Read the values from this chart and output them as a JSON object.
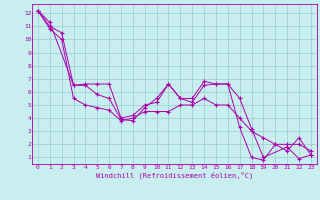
{
  "xlabel": "Windchill (Refroidissement éolien,°C)",
  "background_color": "#c8eef0",
  "line_color": "#aa00aa",
  "grid_color": "#99cccc",
  "xlim": [
    -0.5,
    23.5
  ],
  "ylim": [
    0.5,
    12.7
  ],
  "xticks": [
    0,
    1,
    2,
    3,
    4,
    5,
    6,
    7,
    8,
    9,
    10,
    11,
    12,
    13,
    14,
    15,
    16,
    17,
    18,
    19,
    20,
    21,
    22,
    23
  ],
  "yticks": [
    1,
    2,
    3,
    4,
    5,
    6,
    7,
    8,
    9,
    10,
    11,
    12
  ],
  "line1_x": [
    0,
    1,
    3,
    4,
    5,
    6,
    7,
    8,
    9,
    10,
    11,
    12,
    13,
    14,
    15,
    16,
    17,
    18,
    19,
    21,
    22,
    23
  ],
  "line1_y": [
    12.2,
    11.3,
    6.5,
    6.6,
    6.6,
    6.6,
    4.0,
    4.2,
    5.0,
    5.2,
    6.6,
    5.5,
    5.5,
    6.8,
    6.6,
    6.6,
    5.5,
    3.2,
    1.0,
    1.8,
    0.9,
    1.2
  ],
  "line2_x": [
    0,
    1,
    2,
    3,
    4,
    5,
    6,
    7,
    8,
    9,
    10,
    11,
    12,
    13,
    14,
    15,
    16,
    17,
    18,
    19,
    20,
    21,
    22,
    23
  ],
  "line2_y": [
    12.2,
    10.8,
    10.0,
    5.5,
    5.0,
    4.8,
    4.6,
    3.8,
    4.0,
    4.5,
    4.5,
    4.5,
    5.0,
    5.0,
    5.5,
    5.0,
    5.0,
    4.0,
    3.0,
    2.5,
    2.0,
    2.0,
    2.0,
    1.5
  ],
  "line3_x": [
    0,
    1,
    2,
    3,
    4,
    5,
    6,
    7,
    8,
    9,
    10,
    11,
    12,
    13,
    14,
    15,
    16,
    17,
    18,
    19,
    20,
    21,
    22,
    23
  ],
  "line3_y": [
    12.2,
    11.0,
    10.5,
    6.5,
    6.5,
    5.8,
    5.5,
    3.9,
    3.8,
    4.8,
    5.5,
    6.6,
    5.5,
    5.2,
    6.5,
    6.6,
    6.6,
    3.3,
    1.0,
    0.8,
    2.0,
    1.5,
    2.5,
    1.2
  ]
}
